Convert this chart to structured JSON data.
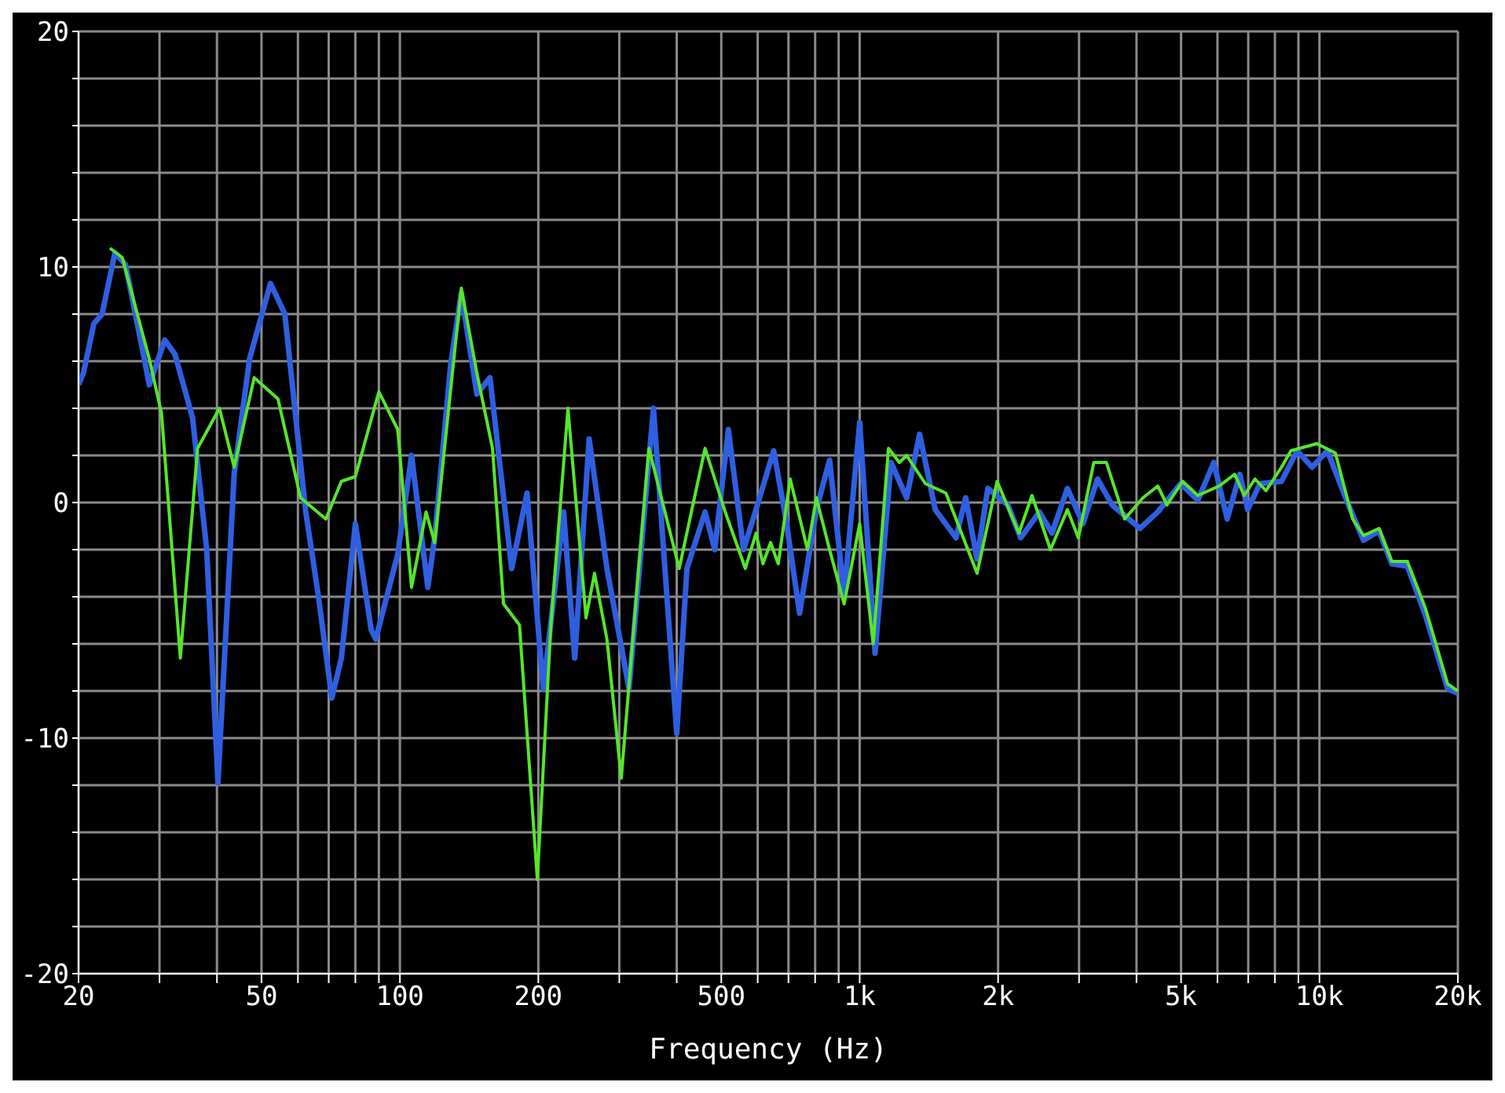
{
  "chart_data": {
    "type": "line",
    "xlabel": "Frequency (Hz)",
    "log": "x",
    "grid": true,
    "xlim": [
      20,
      20000
    ],
    "xticks": [
      20,
      {
        "value": 30,
        "label": null
      },
      {
        "value": 40,
        "label": null
      },
      50,
      {
        "value": 60,
        "label": null
      },
      {
        "value": 70,
        "label": null
      },
      {
        "value": 80,
        "label": null
      },
      {
        "value": 90,
        "label": null
      },
      100,
      200,
      {
        "value": 300,
        "label": null
      },
      {
        "value": 400,
        "label": null
      },
      500,
      {
        "value": 600,
        "label": null
      },
      {
        "value": 700,
        "label": null
      },
      {
        "value": 800,
        "label": null
      },
      {
        "value": 900,
        "label": null
      },
      {
        "value": 1000,
        "label": "1k"
      },
      {
        "value": 2000,
        "label": "2k"
      },
      {
        "value": 3000,
        "label": null
      },
      {
        "value": 4000,
        "label": null
      },
      {
        "value": 5000,
        "label": "5k"
      },
      {
        "value": 6000,
        "label": null
      },
      {
        "value": 7000,
        "label": null
      },
      {
        "value": 8000,
        "label": null
      },
      {
        "value": 9000,
        "label": null
      },
      {
        "value": 10000,
        "label": "10k"
      },
      {
        "value": 20000,
        "label": "20k"
      }
    ],
    "ylim": [
      -20,
      20
    ],
    "yticks": [
      -20,
      {
        "value": -18,
        "label": null
      },
      {
        "value": -16,
        "label": null
      },
      {
        "value": -14,
        "label": null
      },
      {
        "value": -12,
        "label": null
      },
      -10,
      {
        "value": -8,
        "label": null
      },
      {
        "value": -6,
        "label": null
      },
      {
        "value": -4,
        "label": null
      },
      {
        "value": -2,
        "label": null
      },
      0,
      {
        "value": 2,
        "label": null
      },
      {
        "value": 4,
        "label": null
      },
      {
        "value": 6,
        "label": null
      },
      {
        "value": 8,
        "label": null
      },
      10,
      {
        "value": 12,
        "label": null
      },
      {
        "value": 14,
        "label": null
      },
      {
        "value": 16,
        "label": null
      },
      {
        "value": 18,
        "label": null
      },
      20
    ],
    "series": [
      {
        "color": "#2f5fe0",
        "x": [
          20,
          20.5,
          21.6,
          22.5,
          24,
          25.3,
          27.8,
          28.5,
          30.8,
          32.4,
          35.4,
          38,
          40.2,
          43.6,
          47.1,
          52.3,
          56.2,
          62.4,
          66.4,
          71.1,
          74.6,
          80,
          86.6,
          88.6,
          98.9,
          106,
          115,
          119,
          129,
          136,
          147,
          157,
          175,
          189,
          205,
          227,
          240,
          258,
          282,
          315,
          356,
          400,
          421,
          461,
          484,
          518,
          559,
          595,
          650,
          691,
          740,
          805,
          860,
          925,
          1000,
          1080,
          1170,
          1265,
          1350,
          1460,
          1620,
          1700,
          1800,
          1900,
          2100,
          2240,
          2460,
          2620,
          2830,
          3060,
          3290,
          3540,
          4070,
          4450,
          4990,
          5440,
          5890,
          6300,
          6710,
          6980,
          7420,
          8270,
          8940,
          9640,
          10400,
          11560,
          12470,
          13480,
          14360,
          15530,
          17010,
          19000,
          20000
        ],
        "values": [
          5,
          5.5,
          7.6,
          8,
          10.6,
          10.1,
          6.1,
          5,
          6.9,
          6.3,
          3.6,
          -2,
          -11.9,
          1.2,
          6.1,
          9.3,
          8,
          -0.4,
          -3.9,
          -8.3,
          -6.6,
          -0.9,
          -5.4,
          -5.8,
          -2.2,
          2,
          -3.6,
          -1.5,
          5.9,
          8.9,
          4.6,
          5.3,
          -2.8,
          0.4,
          -7.9,
          -0.4,
          -6.6,
          2.7,
          -2.8,
          -7.9,
          4,
          -9.8,
          -2.8,
          -0.4,
          -2,
          3.1,
          -2,
          -0.3,
          2.2,
          -0.7,
          -4.7,
          -0.3,
          1.8,
          -3.9,
          3.4,
          -6.4,
          1.7,
          0.2,
          2.9,
          -0.3,
          -1.5,
          0.2,
          -2.4,
          0.6,
          -0.1,
          -1.5,
          -0.4,
          -1.3,
          0.6,
          -0.9,
          1,
          -0.1,
          -1.1,
          -0.4,
          0.8,
          0.1,
          1.7,
          -0.7,
          1.2,
          -0.3,
          0.8,
          0.9,
          2.2,
          1.5,
          2.2,
          -0.1,
          -1.6,
          -1.2,
          -2.6,
          -2.7,
          -4.8,
          -7.9,
          -8.1
        ]
      },
      {
        "color": "#55e62a",
        "x": [
          23.4,
          24.9,
          28.5,
          30.3,
          33.3,
          36.3,
          40.5,
          43.6,
          48.2,
          54.3,
          60.8,
          69,
          74.6,
          80,
          90,
          98.9,
          106,
          114,
          119,
          136,
          147,
          159,
          168,
          182,
          199,
          213,
          232,
          254,
          265,
          282,
          303,
          330,
          348,
          405,
          461,
          510,
          564,
          595,
          616,
          640,
          665,
          706,
          770,
          805,
          860,
          925,
          1000,
          1070,
          1155,
          1220,
          1265,
          1390,
          1540,
          1620,
          1800,
          1990,
          2220,
          2370,
          2600,
          2830,
          2990,
          3230,
          3440,
          3770,
          4130,
          4450,
          4660,
          5040,
          5440,
          6050,
          6540,
          6860,
          7240,
          7650,
          8270,
          8670,
          9870,
          10830,
          11810,
          12470,
          13480,
          14360,
          15530,
          17010,
          19000,
          20000
        ],
        "values": [
          10.8,
          10.4,
          6.1,
          3.8,
          -6.6,
          2.3,
          4,
          1.5,
          5.3,
          4.4,
          0.2,
          -0.7,
          0.9,
          1.1,
          4.7,
          3.1,
          -3.6,
          -0.4,
          -1.7,
          9.1,
          5.5,
          2.3,
          -4.3,
          -5.2,
          -16,
          -5.2,
          4,
          -4.9,
          -3,
          -5.8,
          -11.7,
          -3,
          2.3,
          -2.8,
          2.3,
          -0.4,
          -2.8,
          -1.3,
          -2.6,
          -1.7,
          -2.6,
          1,
          -2,
          0.2,
          -2,
          -4.3,
          -0.9,
          -6,
          2.3,
          1.7,
          2,
          0.8,
          0.4,
          -0.7,
          -3,
          0.9,
          -1.3,
          0.3,
          -2,
          -0.3,
          -1.5,
          1.7,
          1.7,
          -0.7,
          0.2,
          0.7,
          -0.1,
          0.9,
          0.3,
          0.7,
          1.2,
          0.3,
          1,
          0.5,
          1.5,
          2.2,
          2.5,
          2.1,
          -0.7,
          -1.4,
          -1.1,
          -2.5,
          -2.5,
          -4.5,
          -7.7,
          -8
        ]
      }
    ]
  }
}
